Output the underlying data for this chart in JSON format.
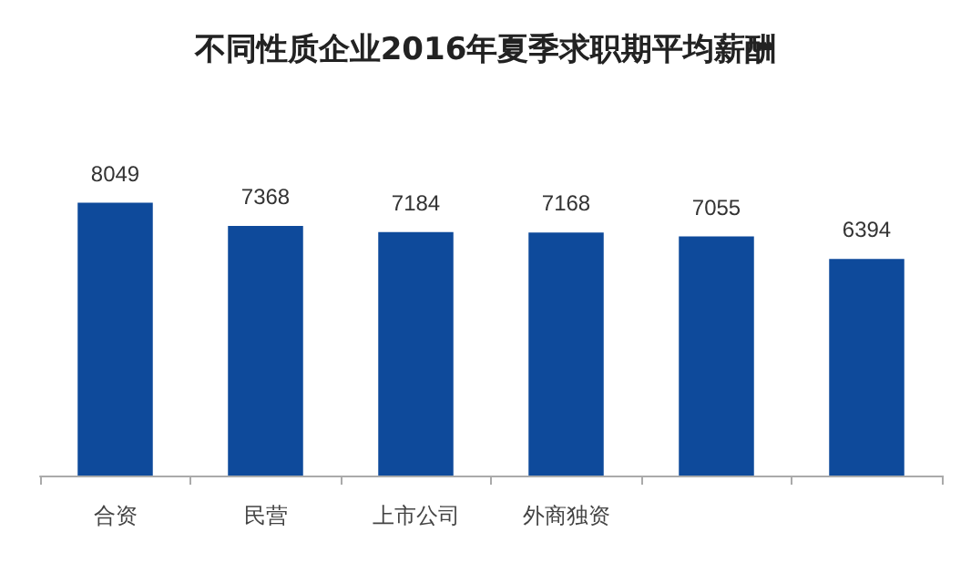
{
  "chart_data": {
    "type": "bar",
    "title": "不同性质企业2016年夏季求职期平均薪酬",
    "categories": [
      "合资",
      "民营",
      "上市公司",
      "外商独资",
      null,
      null
    ],
    "values": [
      8049,
      7368,
      7184,
      7168,
      7055,
      6394
    ],
    "color": "#0e4a9b",
    "tick_labels": "x",
    "data_labels": true
  }
}
